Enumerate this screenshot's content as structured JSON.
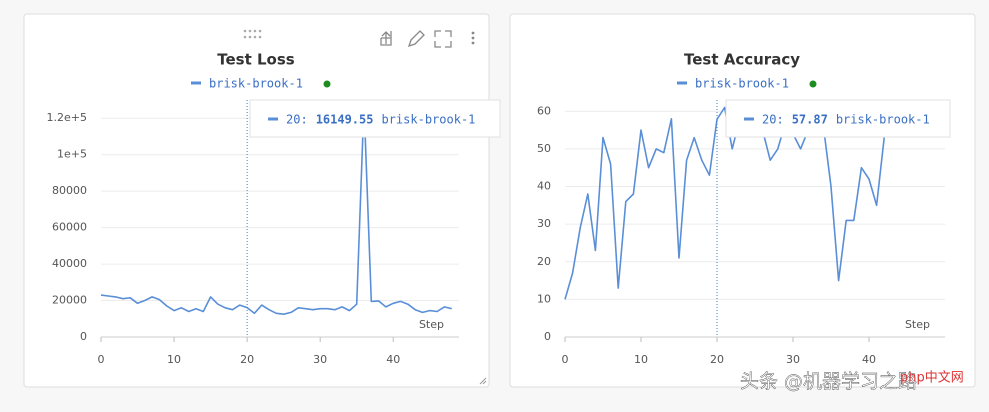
{
  "chart_data": [
    {
      "type": "line",
      "title": "Test Loss",
      "x_label": "Step",
      "x": [
        0,
        1,
        2,
        3,
        4,
        5,
        6,
        7,
        8,
        9,
        10,
        11,
        12,
        13,
        14,
        15,
        16,
        17,
        18,
        19,
        20,
        21,
        22,
        23,
        24,
        25,
        26,
        27,
        28,
        29,
        30,
        31,
        32,
        33,
        34,
        35,
        36,
        37,
        38,
        39,
        40,
        41,
        42,
        43,
        44,
        45,
        46,
        47,
        48
      ],
      "series": [
        {
          "name": "brisk-brook-1",
          "color": "#5a8fd8",
          "values": [
            23000,
            22500,
            22000,
            21000,
            21500,
            18500,
            20000,
            22000,
            20500,
            17000,
            14500,
            16000,
            14000,
            15500,
            14000,
            22000,
            18000,
            16000,
            15000,
            17500,
            16149.55,
            13000,
            17500,
            15000,
            13000,
            12500,
            13500,
            16000,
            15500,
            15000,
            15500,
            15500,
            15000,
            16500,
            14500,
            18000,
            128000,
            19500,
            19800,
            16500,
            18500,
            19500,
            18000,
            15000,
            13500,
            14500,
            14000,
            16500,
            15500
          ]
        }
      ],
      "legend_dot_color": "#1e8c1e",
      "xlim": [
        0,
        49
      ],
      "xticks": [
        0,
        10,
        20,
        30,
        40
      ],
      "ylim": [
        0,
        130000
      ],
      "yticks": [
        0,
        20000,
        40000,
        60000,
        80000,
        {
          "value": 100000,
          "label": "1e+5"
        },
        {
          "value": 120000,
          "label": "1.2e+5"
        }
      ],
      "grid": true,
      "tooltip": {
        "x": {
          "value": 20,
          "label": "20:"
        },
        "value": 16149.55,
        "series": "brisk-brook-1"
      }
    },
    {
      "type": "line",
      "title": "Test Accuracy",
      "x_label": "Step",
      "x": [
        0,
        1,
        2,
        3,
        4,
        5,
        6,
        7,
        8,
        9,
        10,
        11,
        12,
        13,
        14,
        15,
        16,
        17,
        18,
        19,
        20,
        21,
        22,
        23,
        24,
        25,
        26,
        27,
        28,
        29,
        30,
        31,
        32,
        33,
        34,
        35,
        36,
        37,
        38,
        39,
        40,
        41,
        42
      ],
      "series": [
        {
          "name": "brisk-brook-1",
          "color": "#5a8fd8",
          "values": [
            10,
            17,
            29,
            38,
            23,
            53,
            46,
            13,
            36,
            38,
            55,
            45,
            50,
            49,
            58,
            21,
            47,
            53,
            47,
            43,
            57.87,
            61,
            50,
            58,
            60,
            59,
            55,
            47,
            50,
            57,
            54,
            50,
            55,
            58,
            56,
            40,
            15,
            31,
            31,
            45,
            42,
            35,
            53
          ]
        }
      ],
      "legend_dot_color": "#1e8c1e",
      "xlim": [
        0,
        50
      ],
      "xticks": [
        0,
        10,
        20,
        30,
        40
      ],
      "ylim": [
        0,
        63
      ],
      "yticks": [
        0,
        10,
        20,
        30,
        40,
        50,
        60
      ],
      "grid": true,
      "tooltip": {
        "x": {
          "value": 20,
          "label": "20:"
        },
        "value": 57.87,
        "series": "brisk-brook-1"
      }
    }
  ],
  "watermark": {
    "text": "头条 @机器学习之路",
    "site": "php中文网"
  }
}
